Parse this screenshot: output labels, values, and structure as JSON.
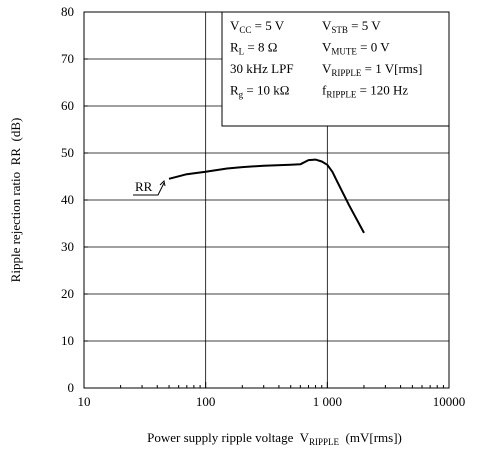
{
  "chart_data": {
    "type": "line",
    "x_label": {
      "text": "Power supply ripple voltage  V",
      "sub": "RIPPLE",
      "after": "  (mV[rms])"
    },
    "y_label": "Ripple rejection ratio  RR  (dB)",
    "xscale": "log",
    "xlim": [
      10,
      10000
    ],
    "ylim": [
      0,
      80
    ],
    "xticks": [
      10,
      100,
      {
        "value": 1000,
        "label": "1 000"
      },
      10000
    ],
    "xminorticks": [
      20,
      30,
      40,
      50,
      60,
      70,
      80,
      90,
      200,
      300,
      400,
      500,
      600,
      700,
      800,
      900,
      2000,
      3000,
      4000,
      5000,
      6000,
      7000,
      8000,
      9000
    ],
    "yticks": [
      0,
      10,
      20,
      30,
      40,
      50,
      60,
      70,
      80
    ],
    "grid": true,
    "series": [
      {
        "name": "RR",
        "color": "#000000",
        "x": [
          50,
          70,
          100,
          150,
          200,
          300,
          500,
          600,
          700,
          800,
          900,
          1000,
          1100,
          1200,
          1500,
          2000
        ],
        "values": [
          44.5,
          45.5,
          46,
          46.7,
          47,
          47.3,
          47.5,
          47.6,
          48.5,
          48.6,
          48.2,
          47.5,
          46,
          44,
          39,
          33
        ]
      }
    ],
    "annotations": [
      [
        {
          "text": "V",
          "sub": "CC",
          "after": " = 5 V"
        },
        {
          "text": "V",
          "sub": "STB",
          "after": " = 5 V"
        }
      ],
      [
        {
          "text": "R",
          "sub": "L",
          "after": " = 8 Ω"
        },
        {
          "text": "V",
          "sub": "MUTE",
          "after": " = 0 V"
        }
      ],
      [
        {
          "text": "30 kHz LPF"
        },
        {
          "text": "V",
          "sub": "RIPPLE",
          "after": " = 1 V[rms]"
        }
      ],
      [
        {
          "text": "R",
          "sub": "g",
          "after": " = 10 kΩ"
        },
        {
          "text": "f",
          "sub": "RIPPLE",
          "after": " = 120 Hz"
        }
      ]
    ]
  }
}
